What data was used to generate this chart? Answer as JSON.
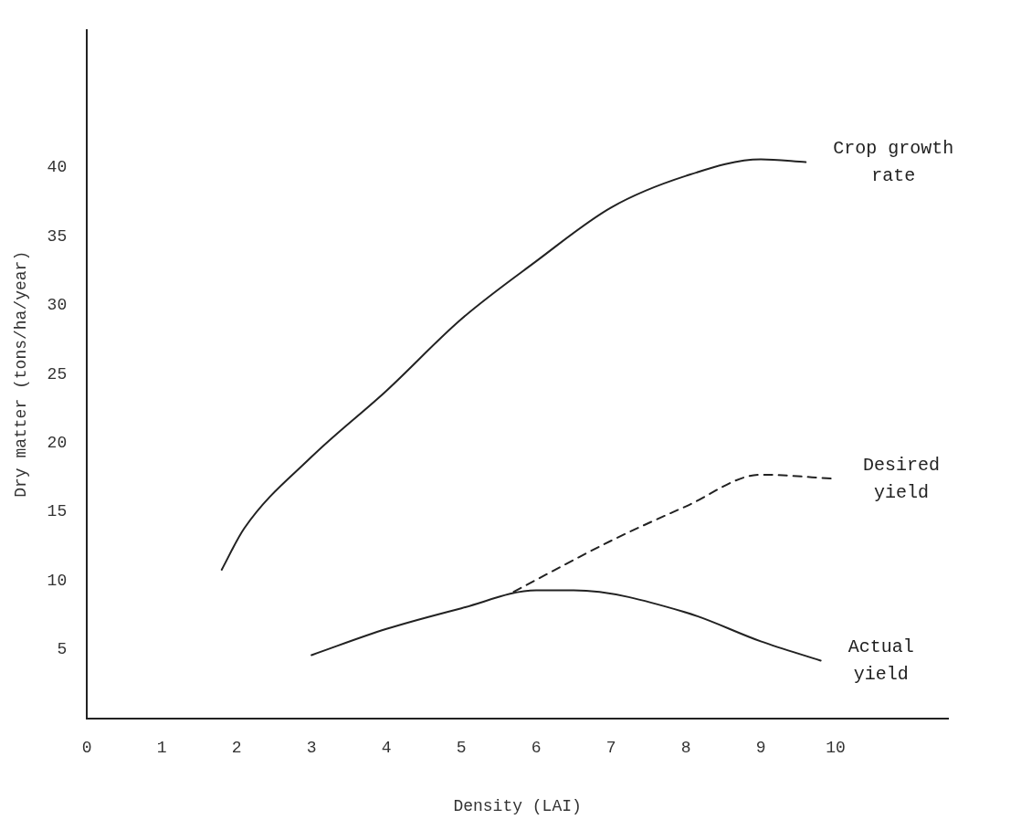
{
  "chart_data": {
    "type": "line",
    "xlabel": "Density (LAI)",
    "ylabel": "Dry matter (tons/ha/year)",
    "xlim": [
      0,
      11.5
    ],
    "ylim": [
      0,
      50
    ],
    "xticks": [
      0,
      1,
      2,
      3,
      4,
      5,
      6,
      7,
      8,
      9,
      10
    ],
    "yticks": [
      5,
      10,
      15,
      20,
      25,
      30,
      35,
      40
    ],
    "grid": false,
    "legend": false,
    "marker": "none",
    "series": [
      {
        "name": "Crop growth rate",
        "color": "#222222",
        "line_style": "solid",
        "x": [
          1.8,
          2.1,
          3,
          4,
          5,
          6,
          7,
          8,
          9,
          9.6
        ],
        "values": [
          10.8,
          13.8,
          19,
          23.8,
          29,
          33.2,
          37.1,
          39.4,
          40.6,
          40.4
        ]
      },
      {
        "name": "Desired yield",
        "color": "#222222",
        "line_style": "dashed",
        "x": [
          5.7,
          7,
          8,
          9,
          10
        ],
        "values": [
          9.2,
          12.9,
          15.4,
          17.7,
          17.4
        ]
      },
      {
        "name": "Actual yield",
        "color": "#222222",
        "line_style": "solid",
        "x": [
          3,
          4,
          5,
          6,
          6.5,
          8,
          9,
          9.8
        ],
        "values": [
          4.6,
          6.5,
          8,
          9.3,
          9.3,
          7.7,
          5.6,
          4.2
        ]
      }
    ]
  }
}
